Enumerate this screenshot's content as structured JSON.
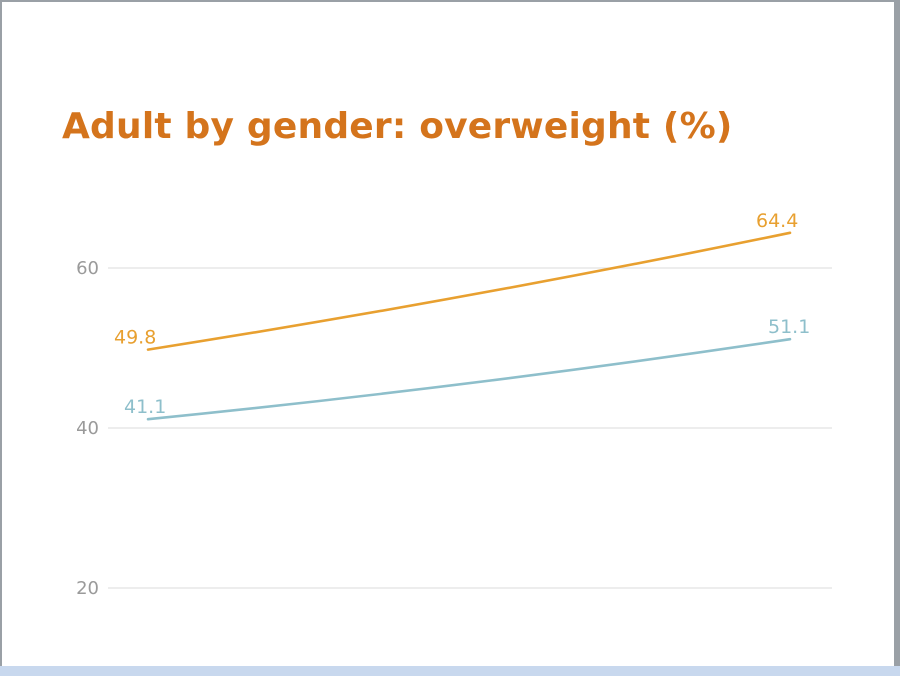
{
  "chart_data": {
    "type": "line",
    "title": "Adult by gender: overweight (%)",
    "xlabel": "",
    "ylabel": "",
    "x": [
      0,
      1
    ],
    "ylim": [
      20,
      70
    ],
    "yticks": [
      20,
      40,
      60
    ],
    "grid": true,
    "series": [
      {
        "color": "#e8a030",
        "values": [
          49.8,
          64.4
        ],
        "labels": [
          "49.8",
          "64.4"
        ]
      },
      {
        "color": "#8ebfcb",
        "values": [
          41.1,
          51.1
        ],
        "labels": [
          "41.1",
          "51.1"
        ]
      }
    ]
  },
  "colors": {
    "title": "#d4741c",
    "grid": "#e2e2e2",
    "tick_label": "#9a9a9a"
  }
}
